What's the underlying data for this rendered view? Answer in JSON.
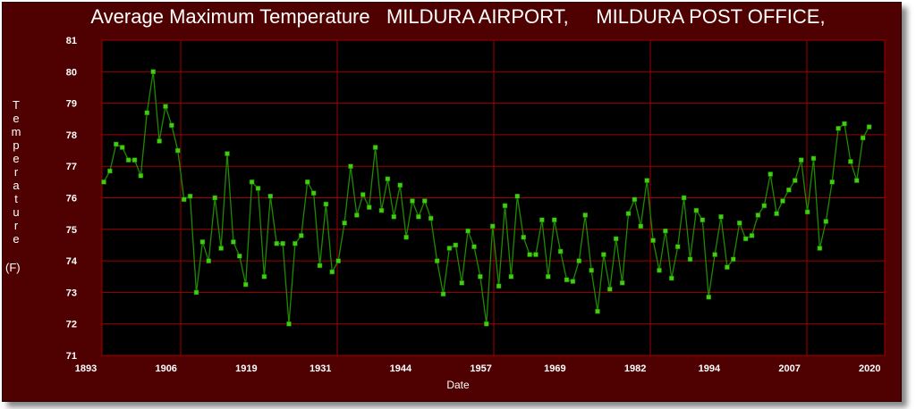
{
  "chart_data": {
    "type": "line",
    "title": "Average Maximum Temperature   MILDURA AIRPORT,     MILDURA POST OFFICE,",
    "xlabel": "Date",
    "ylabel": "Temperature",
    "yunit": "(F)",
    "ylim": [
      71,
      81
    ],
    "yticks": [
      "71",
      "72",
      "73",
      "74",
      "75",
      "76",
      "77",
      "78",
      "79",
      "80",
      "81"
    ],
    "xticks": [
      "1893",
      "1906",
      "1919",
      "1931",
      "1944",
      "1957",
      "1969",
      "1982",
      "1994",
      "2007",
      "2020"
    ],
    "xlim": [
      1893,
      2022
    ],
    "grid": true,
    "colors": {
      "background": "#4f0000",
      "plot": "#000000",
      "grid": "#a00000",
      "line": "#1f8a00",
      "marker": "#3fcf10"
    },
    "series": [
      {
        "name": "Average Maximum Temperature",
        "start_year": 1895,
        "values": [
          76.5,
          76.85,
          77.7,
          77.6,
          77.2,
          77.2,
          76.7,
          78.7,
          80.0,
          77.8,
          78.9,
          78.3,
          77.5,
          75.95,
          76.05,
          73.0,
          74.6,
          74.0,
          76.0,
          74.4,
          77.4,
          74.6,
          74.15,
          73.25,
          76.5,
          76.3,
          73.5,
          76.05,
          74.55,
          74.55,
          72.0,
          74.55,
          74.8,
          76.5,
          76.15,
          73.85,
          75.8,
          73.65,
          74.0,
          75.2,
          77.0,
          75.45,
          76.1,
          75.7,
          77.6,
          75.6,
          76.6,
          75.4,
          76.4,
          74.75,
          75.9,
          75.4,
          75.9,
          75.35,
          74.0,
          72.95,
          74.4,
          74.5,
          73.3,
          74.95,
          74.45,
          73.5,
          72.0,
          75.1,
          73.2,
          75.75,
          73.5,
          76.05,
          74.75,
          74.2,
          74.2,
          75.3,
          73.5,
          75.3,
          74.3,
          73.4,
          73.35,
          74.0,
          75.45,
          73.7,
          72.4,
          74.2,
          73.1,
          74.7,
          73.3,
          75.5,
          75.95,
          75.1,
          76.55,
          74.65,
          73.7,
          74.95,
          73.45,
          74.45,
          76.0,
          74.05,
          75.6,
          75.3,
          72.85,
          74.2,
          75.4,
          73.8,
          74.05,
          75.2,
          74.7,
          74.8,
          75.45,
          75.75,
          76.75,
          75.5,
          75.9,
          76.25,
          76.55,
          77.2,
          75.55,
          77.25,
          74.4,
          75.25,
          76.5,
          78.2,
          78.35,
          77.15,
          76.55,
          77.9,
          78.25
        ]
      }
    ]
  }
}
